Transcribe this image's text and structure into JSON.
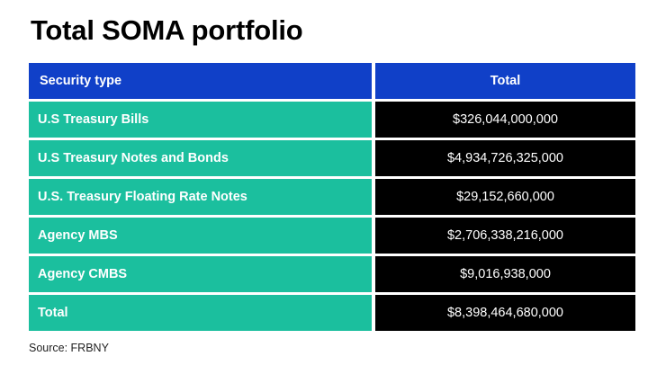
{
  "title": "Total SOMA portfolio",
  "table": {
    "headers": [
      "Security type",
      "Total"
    ],
    "rows": [
      {
        "security_type": "U.S Treasury Bills",
        "total": "$326,044,000,000"
      },
      {
        "security_type": "U.S Treasury Notes and Bonds",
        "total": "$4,934,726,325,000"
      },
      {
        "security_type": "U.S. Treasury Floating Rate Notes",
        "total": "$29,152,660,000"
      },
      {
        "security_type": "Agency MBS",
        "total": "$2,706,338,216,000"
      },
      {
        "security_type": "Agency CMBS",
        "total": "$9,016,938,000"
      },
      {
        "security_type": "Total",
        "total": "$8,398,464,680,000"
      }
    ]
  },
  "source": "Source: FRBNY",
  "colors": {
    "header_bg": "#1040c8",
    "type_cell_bg": "#1bbf9e",
    "total_cell_bg": "#000000",
    "text_light": "#ffffff"
  }
}
